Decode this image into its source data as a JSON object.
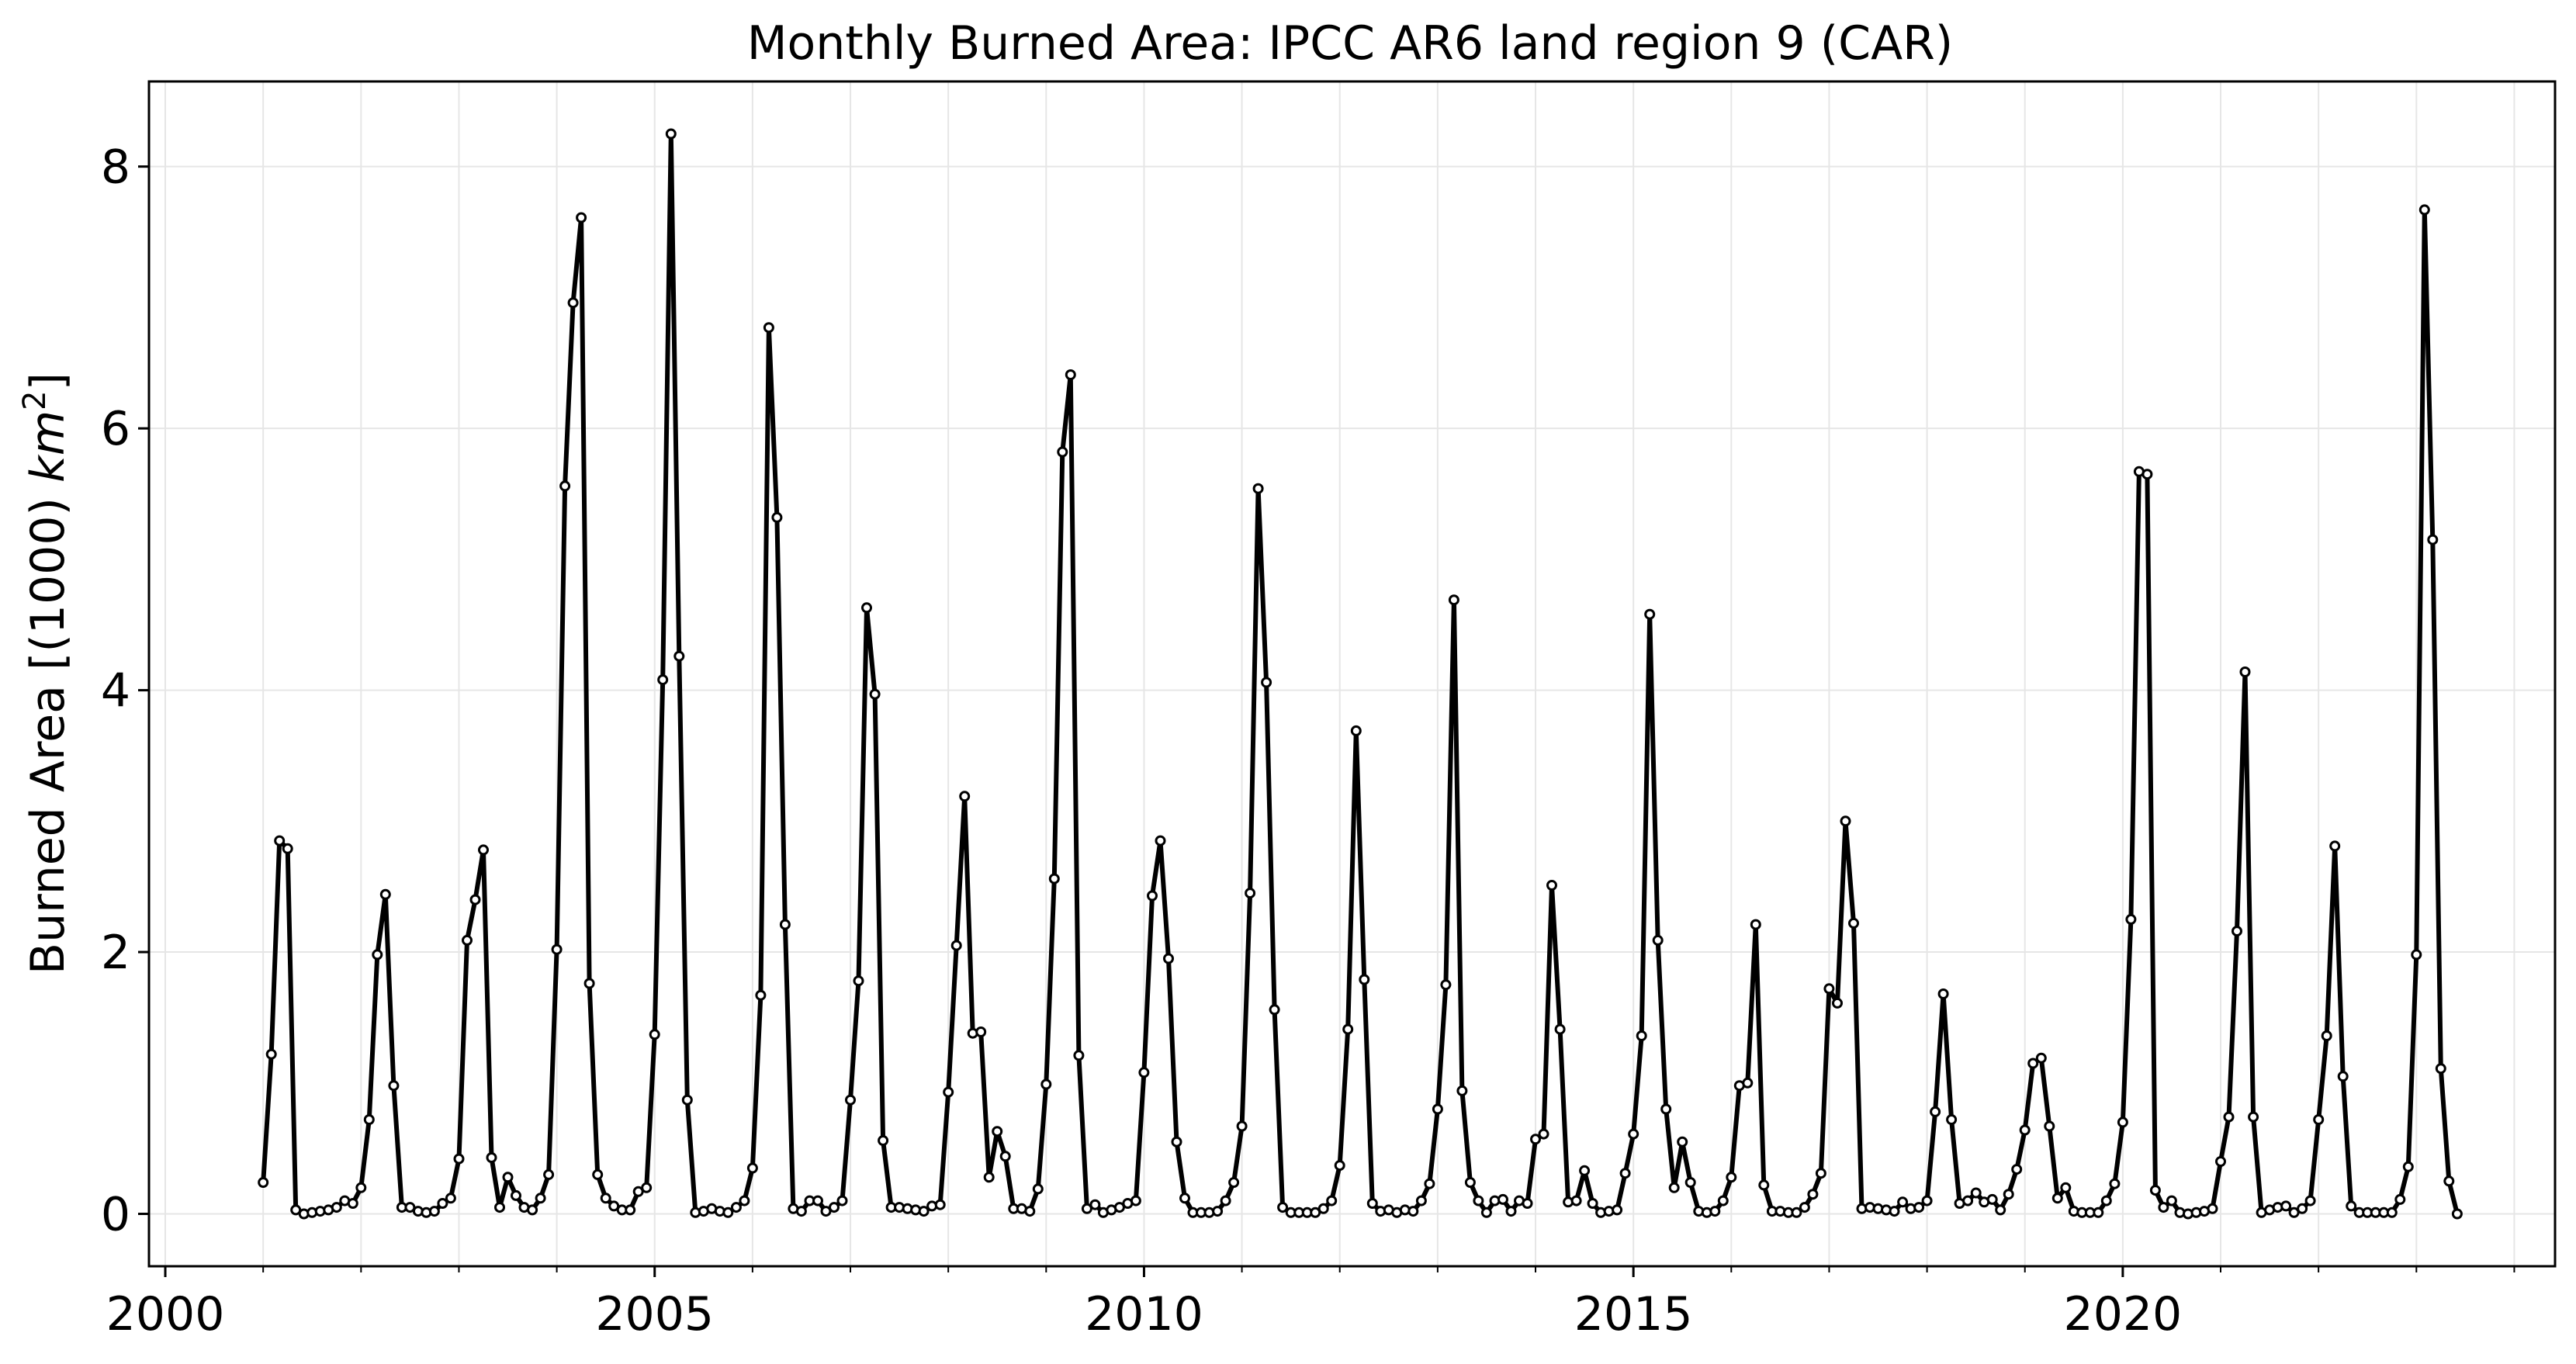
{
  "chart_data": {
    "type": "line",
    "title": "Monthly Burned Area: IPCC AR6 land region 9 (CAR)",
    "xlabel": "",
    "ylabel": "Burned Area [(1000) km²]",
    "ylabel_parts": {
      "prefix": "Burned Area [(1000) ",
      "unit": "km",
      "exponent": "2",
      "suffix": "]"
    },
    "xlim": [
      "1999-11",
      "2024-06"
    ],
    "ylim": [
      -0.4,
      8.65
    ],
    "x_ticks": [
      2000,
      2005,
      2010,
      2015,
      2020
    ],
    "x_tick_labels": [
      "2000",
      "2005",
      "2010",
      "2015",
      "2020"
    ],
    "y_ticks": [
      0,
      2,
      4,
      6,
      8
    ],
    "y_tick_labels": [
      "0",
      "2",
      "4",
      "6",
      "8"
    ],
    "grid": true,
    "legend": "none",
    "series_color": "#000000",
    "marker_fill": "#ffffff",
    "start_month": "2001-01",
    "series": [
      {
        "values": [
          0.24,
          1.22,
          2.85,
          2.79,
          0.03,
          0.0,
          0.01,
          0.02,
          0.03,
          0.05,
          0.1,
          0.08,
          0.2,
          0.72,
          1.98,
          2.44,
          0.98,
          0.05,
          0.05,
          0.02,
          0.01,
          0.02,
          0.08,
          0.12,
          0.42,
          2.09,
          2.4,
          2.78,
          0.43,
          0.05,
          0.28,
          0.14,
          0.05,
          0.03,
          0.12,
          0.3,
          2.02,
          5.56,
          6.96,
          7.61,
          1.76,
          0.3,
          0.12,
          0.06,
          0.03,
          0.03,
          0.17,
          0.2,
          1.37,
          4.08,
          8.25,
          4.26,
          0.87,
          0.01,
          0.02,
          0.04,
          0.02,
          0.01,
          0.05,
          0.1,
          0.35,
          1.67,
          6.77,
          5.32,
          2.21,
          0.04,
          0.02,
          0.1,
          0.1,
          0.02,
          0.05,
          0.1,
          0.87,
          1.78,
          4.63,
          3.97,
          0.56,
          0.05,
          0.05,
          0.04,
          0.03,
          0.02,
          0.06,
          0.07,
          0.93,
          2.05,
          3.19,
          1.38,
          1.39,
          0.28,
          0.63,
          0.44,
          0.04,
          0.04,
          0.02,
          0.19,
          0.99,
          2.56,
          5.82,
          6.41,
          1.21,
          0.04,
          0.07,
          0.01,
          0.03,
          0.05,
          0.08,
          0.1,
          1.08,
          2.43,
          2.85,
          1.95,
          0.55,
          0.12,
          0.01,
          0.01,
          0.01,
          0.02,
          0.1,
          0.24,
          0.67,
          2.45,
          5.54,
          4.06,
          1.56,
          0.05,
          0.01,
          0.01,
          0.01,
          0.01,
          0.04,
          0.1,
          0.37,
          1.41,
          3.69,
          1.79,
          0.08,
          0.02,
          0.03,
          0.01,
          0.03,
          0.02,
          0.1,
          0.23,
          0.8,
          1.75,
          4.69,
          0.94,
          0.24,
          0.1,
          0.01,
          0.1,
          0.11,
          0.02,
          0.1,
          0.08,
          0.57,
          0.61,
          2.51,
          1.41,
          0.09,
          0.1,
          0.33,
          0.08,
          0.01,
          0.02,
          0.03,
          0.31,
          0.61,
          1.36,
          4.58,
          2.09,
          0.8,
          0.2,
          0.55,
          0.24,
          0.02,
          0.01,
          0.02,
          0.1,
          0.28,
          0.98,
          1.0,
          2.21,
          0.22,
          0.02,
          0.02,
          0.01,
          0.01,
          0.05,
          0.15,
          0.31,
          1.72,
          1.61,
          3.0,
          2.22,
          0.04,
          0.05,
          0.04,
          0.03,
          0.02,
          0.09,
          0.04,
          0.05,
          0.1,
          0.78,
          1.68,
          0.72,
          0.08,
          0.1,
          0.16,
          0.09,
          0.11,
          0.03,
          0.15,
          0.34,
          0.64,
          1.15,
          1.19,
          0.67,
          0.12,
          0.2,
          0.02,
          0.01,
          0.01,
          0.01,
          0.1,
          0.23,
          0.7,
          2.25,
          5.67,
          5.65,
          0.18,
          0.05,
          0.1,
          0.01,
          0.0,
          0.01,
          0.02,
          0.04,
          0.4,
          0.74,
          2.16,
          4.14,
          0.74,
          0.01,
          0.03,
          0.05,
          0.06,
          0.01,
          0.04,
          0.1,
          0.72,
          1.36,
          2.81,
          1.05,
          0.06,
          0.01,
          0.01,
          0.01,
          0.01,
          0.01,
          0.11,
          0.36,
          1.98,
          7.67,
          5.15,
          1.11,
          0.25,
          0.0
        ]
      }
    ]
  }
}
